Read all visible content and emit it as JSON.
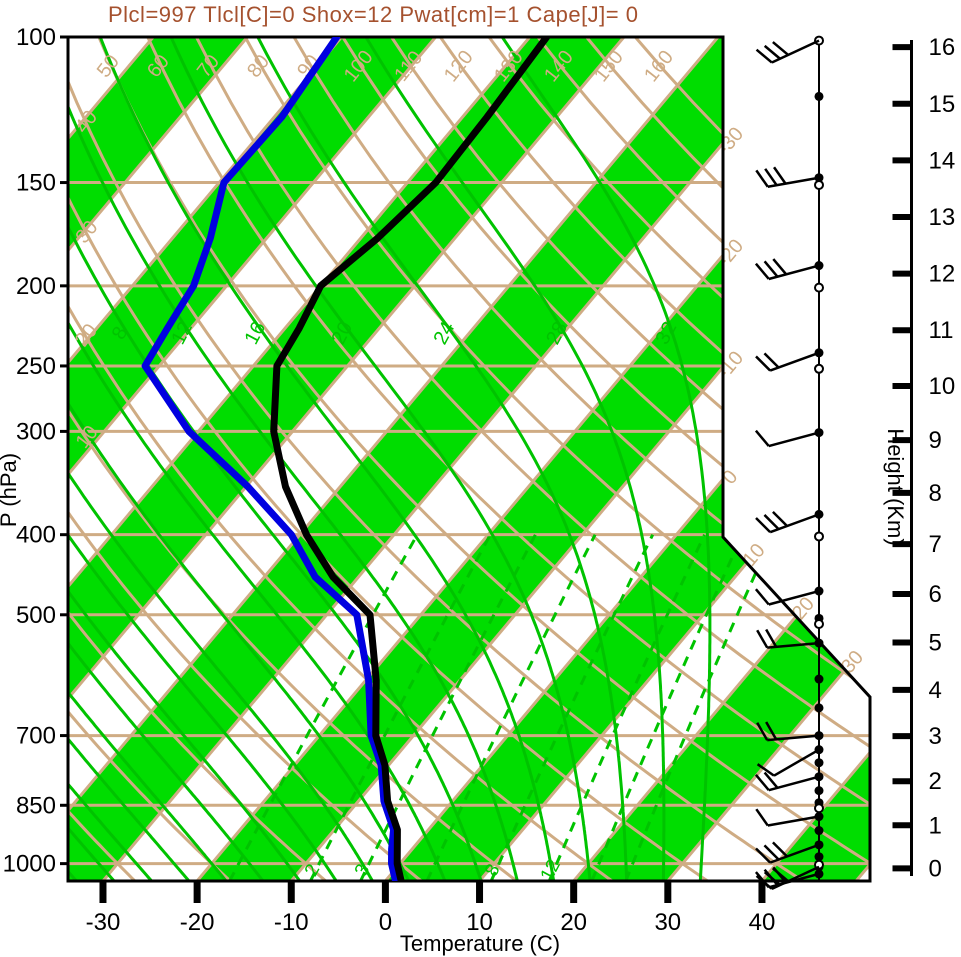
{
  "title": "Plcl=997 Tlcl[C]=0 Shox=12 Pwat[cm]=1 Cape[J]= 0",
  "colors": {
    "title": "#A5512E",
    "band_green": "#00DD00",
    "green_line": "#00C300",
    "tan": "#CFAC84",
    "temp_curve": "#000000",
    "dewpoint_curve": "#0000E0",
    "axis": "#000000"
  },
  "axes": {
    "pressure": {
      "label": "P (hPa)",
      "ticks": [
        100,
        150,
        200,
        250,
        300,
        400,
        500,
        700,
        850,
        1000
      ]
    },
    "temperature": {
      "label": "Temperature (C)",
      "ticks": [
        -30,
        -20,
        -10,
        0,
        10,
        20,
        30,
        40
      ]
    },
    "height": {
      "label": "Height (Km)",
      "ticks": [
        0,
        1,
        2,
        3,
        4,
        5,
        6,
        7,
        8,
        9,
        10,
        11,
        12,
        13,
        14,
        15,
        16
      ]
    }
  },
  "line_labels": {
    "dry_adiabats_top": [
      "50",
      "60",
      "70",
      "80",
      "90",
      "100",
      "110",
      "120",
      "130",
      "140",
      "150",
      "160"
    ],
    "dry_adiabats_left": [
      "40",
      "30",
      "20",
      "10"
    ],
    "isotherms_right": [
      "-30",
      "-20",
      "-10",
      "0",
      "10",
      "20",
      "30"
    ],
    "moist_adiabats": [
      "8",
      "12",
      "16",
      "20",
      "24",
      "28",
      "32"
    ],
    "mixing_ratio": [
      "2",
      "3",
      "8",
      "12"
    ]
  },
  "chart_data": {
    "type": "skewt-log-p-sounding",
    "title": "Plcl=997 Tlcl[C]=0 Shox=12 Pwat[cm]=1 Cape[J]= 0",
    "xlabel": "Temperature (C)",
    "ylabel_left": "P (hPa)",
    "ylabel_right": "Height (Km)",
    "xlim_c": [
      -33,
      51
    ],
    "plim_hpa": [
      100,
      1050
    ],
    "pressure_hpa": [
      1045,
      1000,
      960,
      910,
      840,
      760,
      700,
      600,
      500,
      450,
      400,
      350,
      300,
      250,
      225,
      200,
      175,
      150,
      125,
      100
    ],
    "temperature_c": [
      1.5,
      -0.3,
      -1.6,
      -3.3,
      -6.9,
      -10.4,
      -14.0,
      -18.9,
      -25.4,
      -32.7,
      -39.3,
      -45.8,
      -52.0,
      -57.5,
      -58.5,
      -60.0,
      -58.2,
      -57.0,
      -57.4,
      -58.2
    ],
    "dewpoint_c": [
      0.9,
      -0.9,
      -2.2,
      -3.7,
      -7.3,
      -10.8,
      -14.5,
      -19.7,
      -26.8,
      -34.6,
      -40.9,
      -49.8,
      -61.0,
      -71.5,
      -72.5,
      -73.5,
      -76.0,
      -79.5,
      -79.2,
      -80.5
    ],
    "isotherm_step_c": 10,
    "green_band_start_c_mod20": 0,
    "dry_adiabat_theta_c": [
      -30,
      -20,
      -10,
      0,
      10,
      20,
      30,
      40,
      50,
      60,
      70,
      80,
      90,
      100,
      110,
      120,
      130,
      140,
      150,
      160
    ],
    "moist_adiabat_thetaw_c": [
      -36,
      -32,
      -28,
      -24,
      -20,
      -16,
      -12,
      -8,
      -4,
      0,
      4,
      8,
      12,
      16,
      20,
      24,
      28,
      32
    ],
    "mixing_ratio_gkg": [
      1,
      2,
      3,
      5,
      8,
      12,
      16,
      20
    ],
    "station_dots_p": [
      118,
      148,
      189,
      241,
      301,
      378,
      468,
      505,
      541,
      598,
      648,
      700,
      728,
      755,
      785,
      816,
      844,
      877,
      912,
      949,
      981,
      1009,
      1029
    ],
    "open_dots_p": [
      101,
      151,
      201,
      252,
      402,
      513,
      857,
      1003
    ],
    "wind_barbs": [
      {
        "p": 101,
        "dir": 205,
        "ticks": 3
      },
      {
        "p": 148,
        "dir": 190,
        "ticks": 3
      },
      {
        "p": 189,
        "dir": 195,
        "ticks": 3
      },
      {
        "p": 241,
        "dir": 200,
        "ticks": 2
      },
      {
        "p": 301,
        "dir": 195,
        "ticks": 1
      },
      {
        "p": 378,
        "dir": 200,
        "ticks": 3
      },
      {
        "p": 468,
        "dir": 195,
        "ticks": 1
      },
      {
        "p": 541,
        "dir": 185,
        "ticks": 2
      },
      {
        "p": 700,
        "dir": 185,
        "ticks": 2
      },
      {
        "p": 728,
        "dir": 210,
        "ticks": 1
      },
      {
        "p": 785,
        "dir": 195,
        "ticks": 2
      },
      {
        "p": 877,
        "dir": 190,
        "ticks": 1
      },
      {
        "p": 949,
        "dir": 200,
        "ticks": 3
      },
      {
        "p": 1009,
        "dir": 205,
        "ticks": 3
      },
      {
        "p": 1029,
        "dir": 195,
        "ticks": 3
      }
    ]
  }
}
